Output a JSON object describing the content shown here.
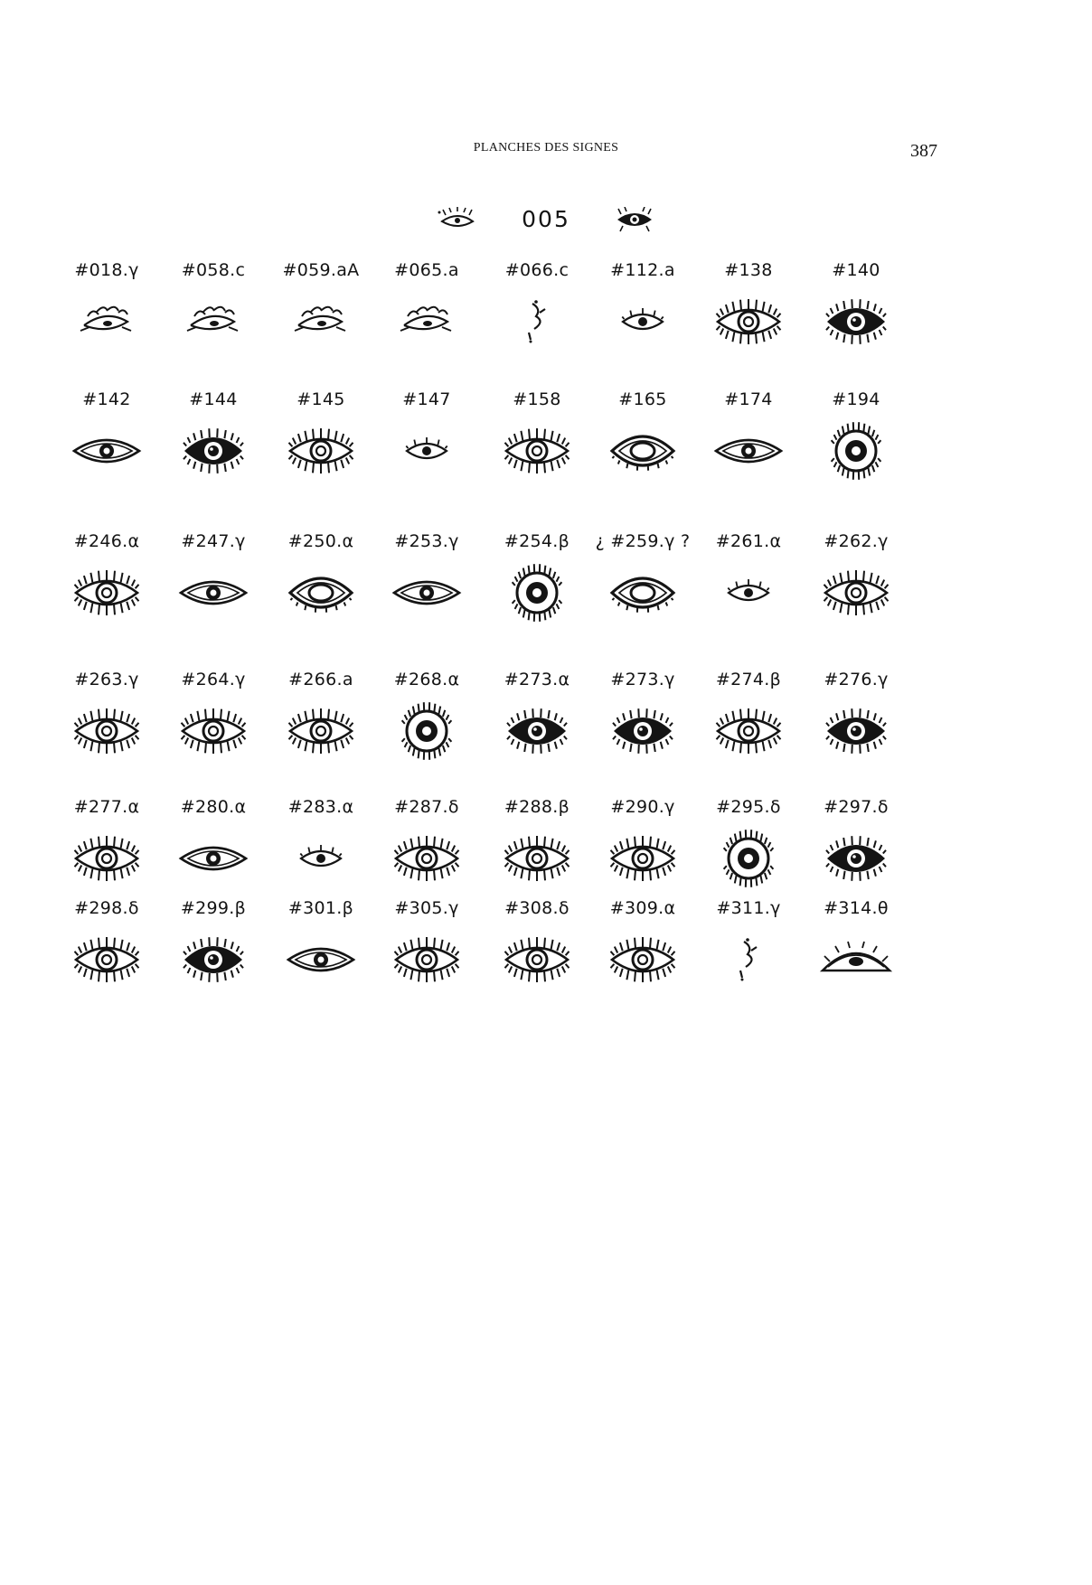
{
  "page": {
    "running_head": "PLANCHES DES SIGNES",
    "page_number": "387",
    "plate_number": "005",
    "header_icons": [
      "small-eye-icon",
      "dark-eye-icon"
    ]
  },
  "rows": [
    {
      "signs": [
        {
          "label": "#018.γ",
          "icon": "sketch-eye-icon"
        },
        {
          "label": "#058.c",
          "icon": "sketch-eye-icon"
        },
        {
          "label": "#059.aA",
          "icon": "sketch-eye-icon"
        },
        {
          "label": "#065.a",
          "icon": "sketch-eye-icon"
        },
        {
          "label": "#066.c",
          "icon": "partial-eye-icon"
        },
        {
          "label": "#112.a",
          "icon": "small-eye-icon"
        },
        {
          "label": "#138",
          "icon": "lashed-eye-icon"
        },
        {
          "label": "#140",
          "icon": "dark-eye-icon"
        }
      ]
    },
    {
      "signs": [
        {
          "label": "#142",
          "icon": "almond-eye-icon"
        },
        {
          "label": "#144",
          "icon": "dark-eye-icon"
        },
        {
          "label": "#145",
          "icon": "lashed-eye-icon"
        },
        {
          "label": "#147",
          "icon": "small-eye-icon"
        },
        {
          "label": "#158",
          "icon": "lashed-eye-icon"
        },
        {
          "label": "#165",
          "icon": "outlined-eye-icon"
        },
        {
          "label": "#174",
          "icon": "almond-eye-icon"
        },
        {
          "label": "#194",
          "icon": "round-eye-icon"
        }
      ]
    },
    {
      "signs": [
        {
          "label": "#246.α",
          "icon": "lashed-eye-icon"
        },
        {
          "label": "#247.γ",
          "icon": "almond-eye-icon"
        },
        {
          "label": "#250.α",
          "icon": "outlined-eye-icon"
        },
        {
          "label": "#253.γ",
          "icon": "almond-eye-icon"
        },
        {
          "label": "#254.β",
          "icon": "round-eye-icon"
        },
        {
          "label": "¿ #259.γ ?",
          "icon": "outlined-eye-icon"
        },
        {
          "label": "#261.α",
          "icon": "small-eye-icon"
        },
        {
          "label": "#262.γ",
          "icon": "lashed-eye-icon"
        }
      ]
    },
    {
      "signs": [
        {
          "label": "#263.γ",
          "icon": "lashed-eye-icon"
        },
        {
          "label": "#264.γ",
          "icon": "lashed-eye-icon"
        },
        {
          "label": "#266.a",
          "icon": "lashed-eye-icon"
        },
        {
          "label": "#268.α",
          "icon": "round-eye-icon"
        },
        {
          "label": "#273.α",
          "icon": "dark-eye-icon"
        },
        {
          "label": "#273.γ",
          "icon": "dark-eye-icon"
        },
        {
          "label": "#274.β",
          "icon": "lashed-eye-icon"
        },
        {
          "label": "#276.γ",
          "icon": "dark-eye-icon"
        }
      ]
    },
    {
      "signs": [
        {
          "label": "#277.α",
          "icon": "lashed-eye-icon"
        },
        {
          "label": "#280.α",
          "icon": "almond-eye-icon"
        },
        {
          "label": "#283.α",
          "icon": "small-eye-icon"
        },
        {
          "label": "#287.δ",
          "icon": "lashed-eye-icon"
        },
        {
          "label": "#288.β",
          "icon": "lashed-eye-icon"
        },
        {
          "label": "#290.γ",
          "icon": "lashed-eye-icon"
        },
        {
          "label": "#295.δ",
          "icon": "round-eye-icon"
        },
        {
          "label": "#297.δ",
          "icon": "dark-eye-icon"
        }
      ]
    },
    {
      "signs": [
        {
          "label": "#298.δ",
          "icon": "lashed-eye-icon"
        },
        {
          "label": "#299.β",
          "icon": "dark-eye-icon"
        },
        {
          "label": "#301.β",
          "icon": "almond-eye-icon"
        },
        {
          "label": "#305.γ",
          "icon": "lashed-eye-icon"
        },
        {
          "label": "#308.δ",
          "icon": "lashed-eye-icon"
        },
        {
          "label": "#309.α",
          "icon": "lashed-eye-icon"
        },
        {
          "label": "#311.γ",
          "icon": "partial-eye-icon"
        },
        {
          "label": "#314.θ",
          "icon": "half-eye-icon"
        }
      ]
    }
  ]
}
